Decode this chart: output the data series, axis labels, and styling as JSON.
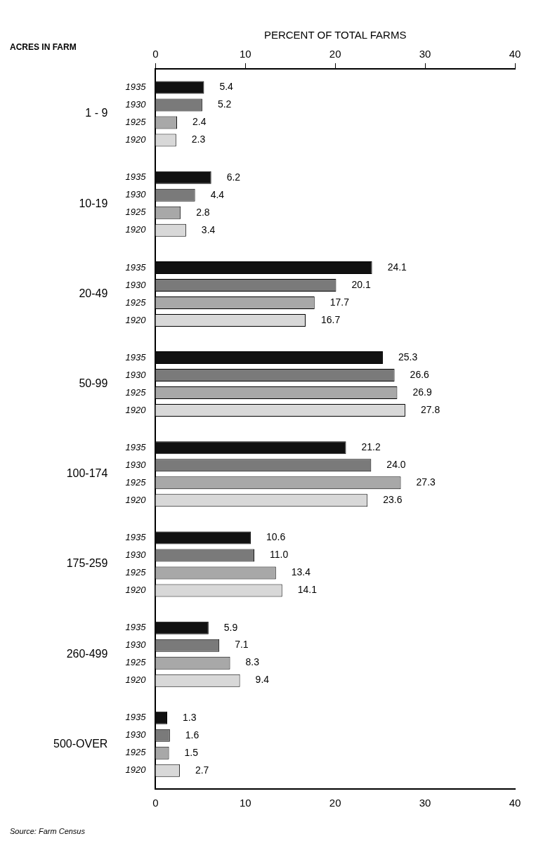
{
  "chart_data": {
    "type": "bar",
    "orientation": "horizontal",
    "xlabel": "PERCENT OF TOTAL FARMS",
    "ylabel": "ACRES IN FARM",
    "categories": [
      "1 - 9",
      "10-19",
      "20-49",
      "50-99",
      "100-174",
      "175-259",
      "260-499",
      "500-OVER"
    ],
    "series": [
      {
        "name": "1935",
        "color": "#111111",
        "values": [
          5.4,
          6.2,
          24.1,
          25.3,
          21.2,
          10.6,
          5.9,
          1.3
        ],
        "value_labels": [
          "5.4",
          "6.2",
          "24.1",
          "25.3",
          "21.2",
          "10.6",
          "5.9",
          "1.3"
        ]
      },
      {
        "name": "1930",
        "color": "#7a7a7a",
        "values": [
          5.2,
          4.4,
          20.1,
          26.6,
          24.0,
          11.0,
          7.1,
          1.6
        ],
        "value_labels": [
          "5.2",
          "4.4",
          "20.1",
          "26.6",
          "24.0",
          "11.0",
          "7.1",
          "1.6"
        ]
      },
      {
        "name": "1925",
        "color": "#a8a8a8",
        "values": [
          2.4,
          2.8,
          17.7,
          26.9,
          27.3,
          13.4,
          8.3,
          1.5
        ],
        "value_labels": [
          "2.4",
          "2.8",
          "17.7",
          "26.9",
          "27.3",
          "13.4",
          "8.3",
          "1.5"
        ]
      },
      {
        "name": "1920",
        "color": "#d8d8d8",
        "values": [
          2.3,
          3.4,
          16.7,
          27.8,
          23.6,
          14.1,
          9.4,
          2.7
        ],
        "value_labels": [
          "2.3",
          "3.4",
          "16.7",
          "27.8",
          "23.6",
          "14.1",
          "9.4",
          "2.7"
        ]
      }
    ],
    "xlim": [
      0,
      40
    ],
    "xticks": [
      0,
      10,
      20,
      30,
      40
    ],
    "x2lim": [
      0,
      40
    ],
    "x2ticks": [
      0,
      10,
      20,
      30,
      40
    ],
    "grid": false,
    "legend": false,
    "annotations": [
      "Source: Farm Census"
    ]
  }
}
